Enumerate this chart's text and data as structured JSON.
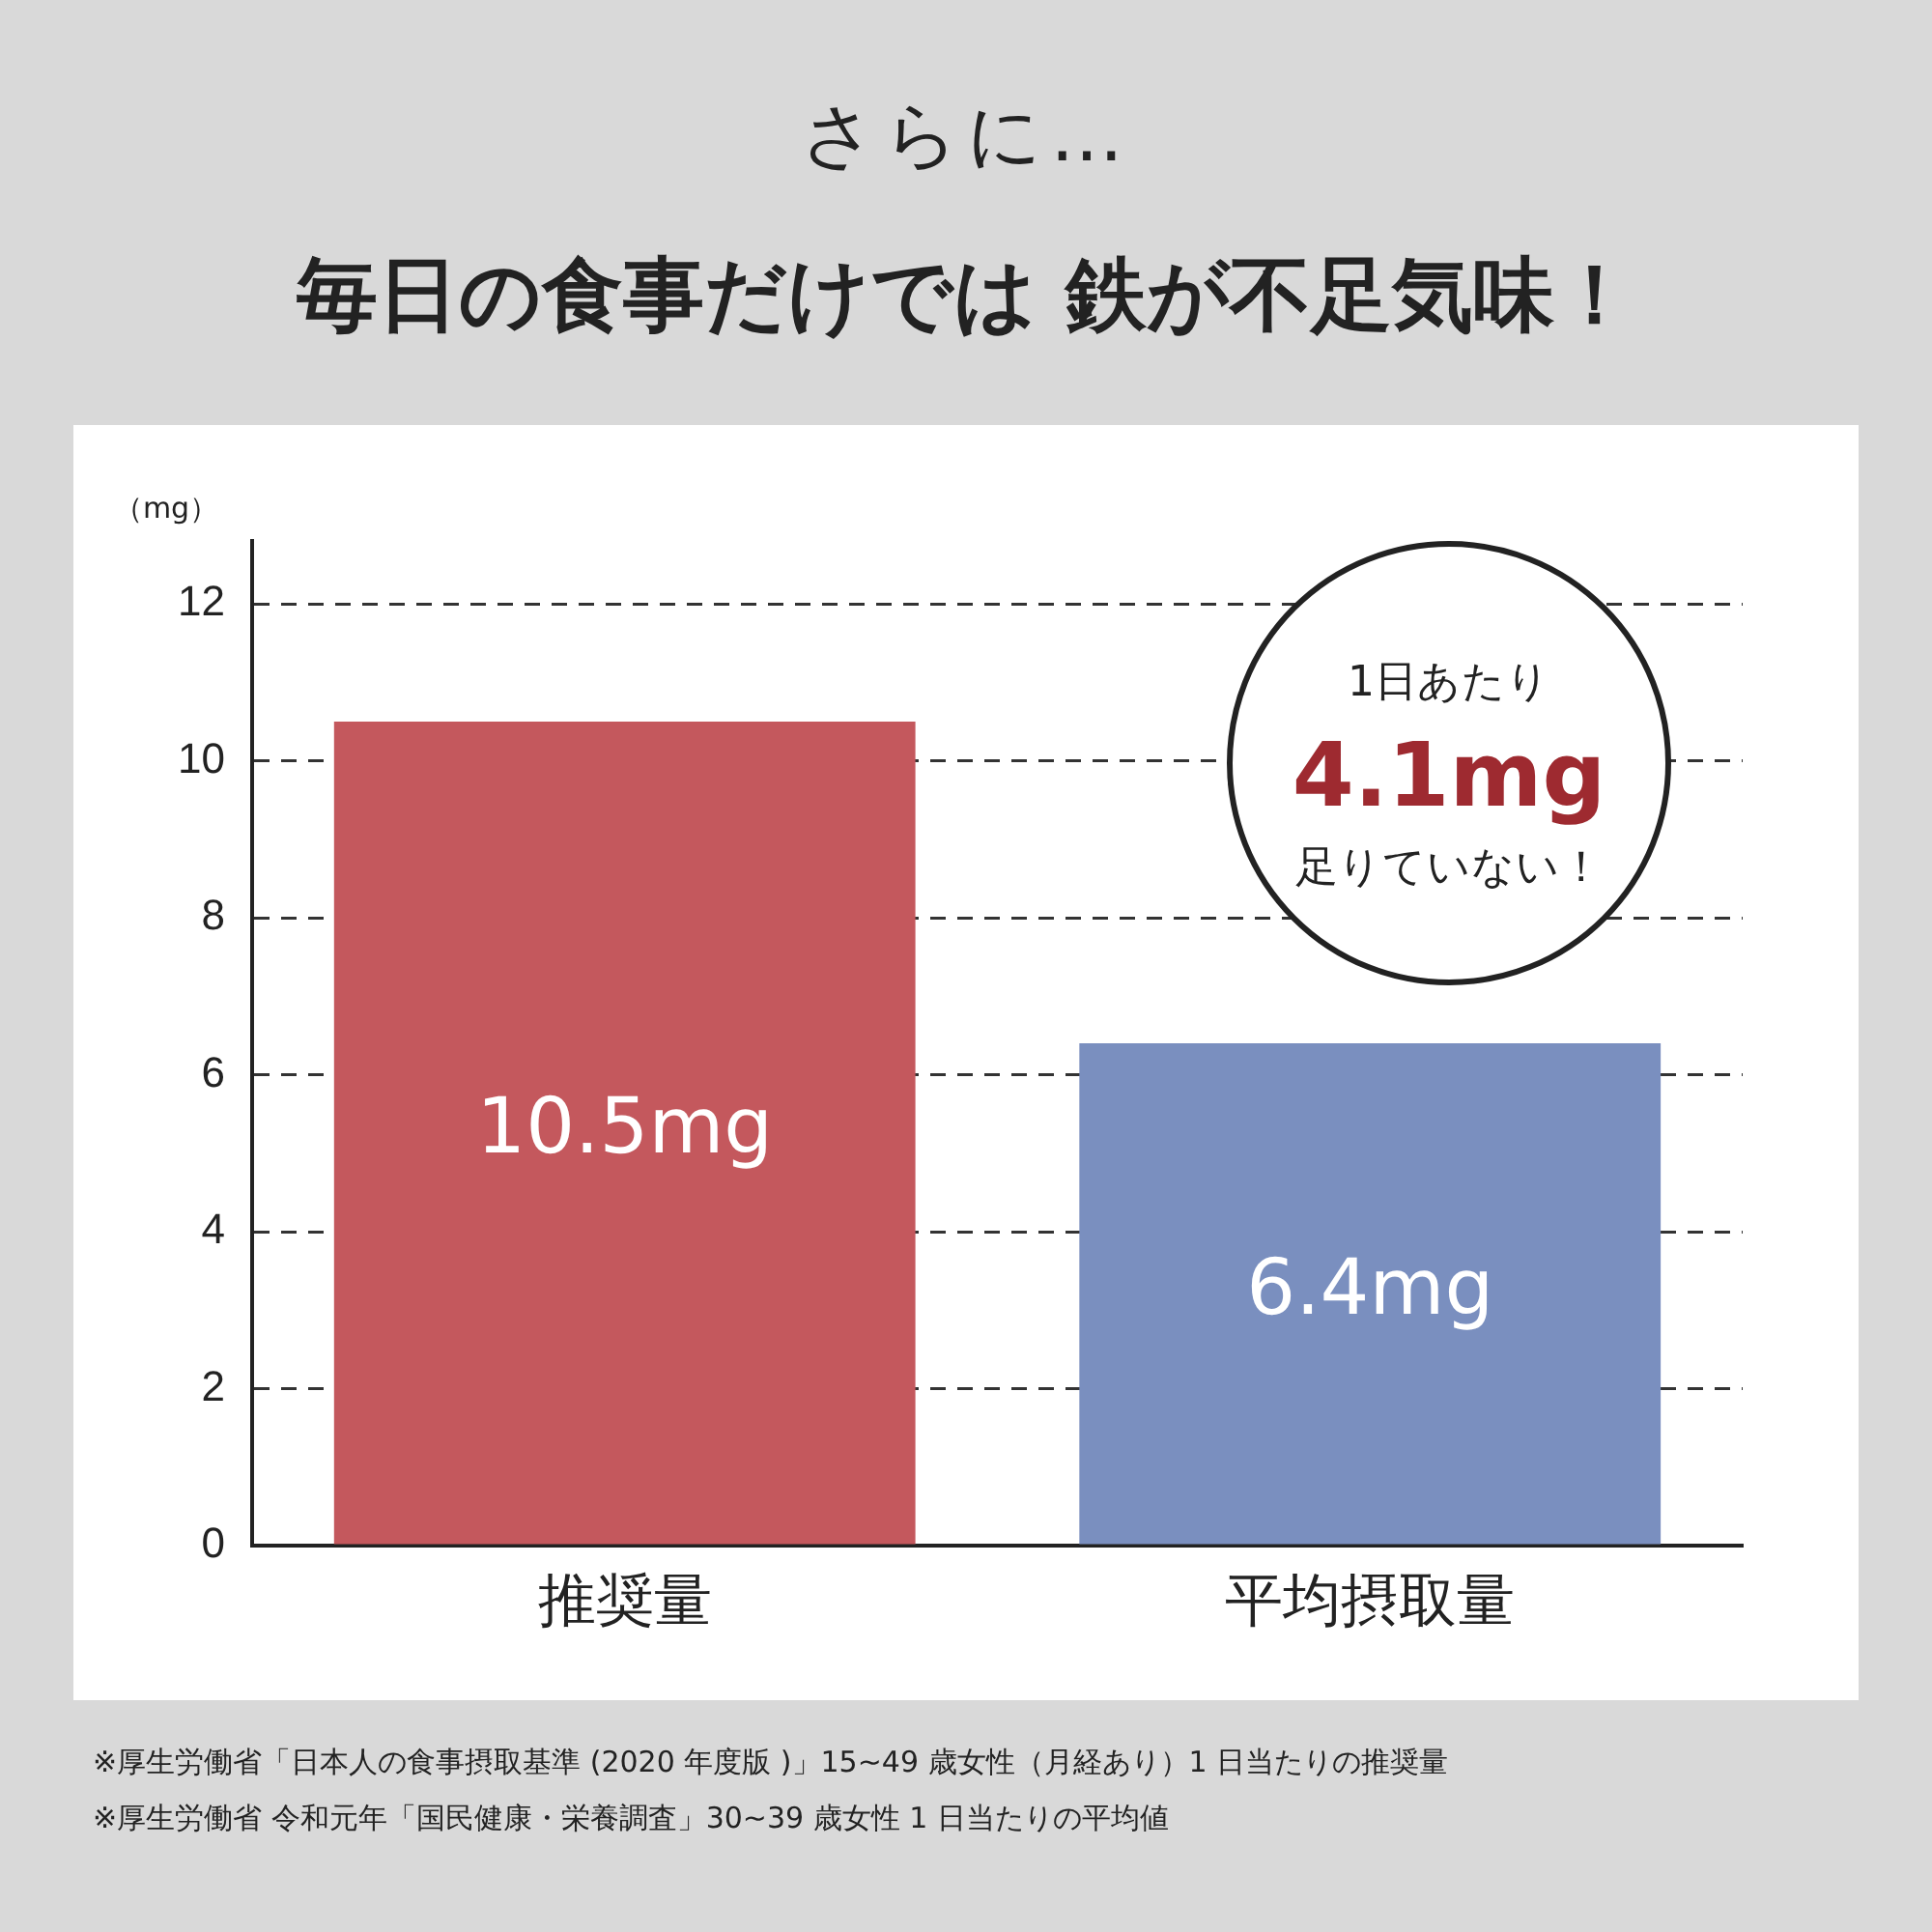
{
  "chart_data": {
    "type": "bar",
    "title": "さらに…",
    "subtitle": "毎日の食事だけでは 鉄が不足気味！",
    "ylabel": "（mg）",
    "categories": [
      "推奨量",
      "平均摂取量"
    ],
    "values": [
      10.5,
      6.4
    ],
    "colors": [
      "#c4585d",
      "#7a8fbf"
    ],
    "value_labels": [
      "10.5mg",
      "6.4mg"
    ],
    "ylim": [
      0,
      12.8
    ],
    "yticks": [
      0,
      2,
      4,
      6,
      8,
      10,
      12
    ],
    "grid": "y",
    "legend": false,
    "annotations": [
      "1日あたり",
      "4.1mg",
      "足りていない！",
      "※厚生労働省「日本人の食事摂取基準 (2020 年度版 )」15~49 歳女性（月経あり）1 日当たりの推奨量",
      "※厚生労働省 令和元年「国民健康・栄養調査」30~39 歳女性 1 日当たりの平均値"
    ]
  }
}
